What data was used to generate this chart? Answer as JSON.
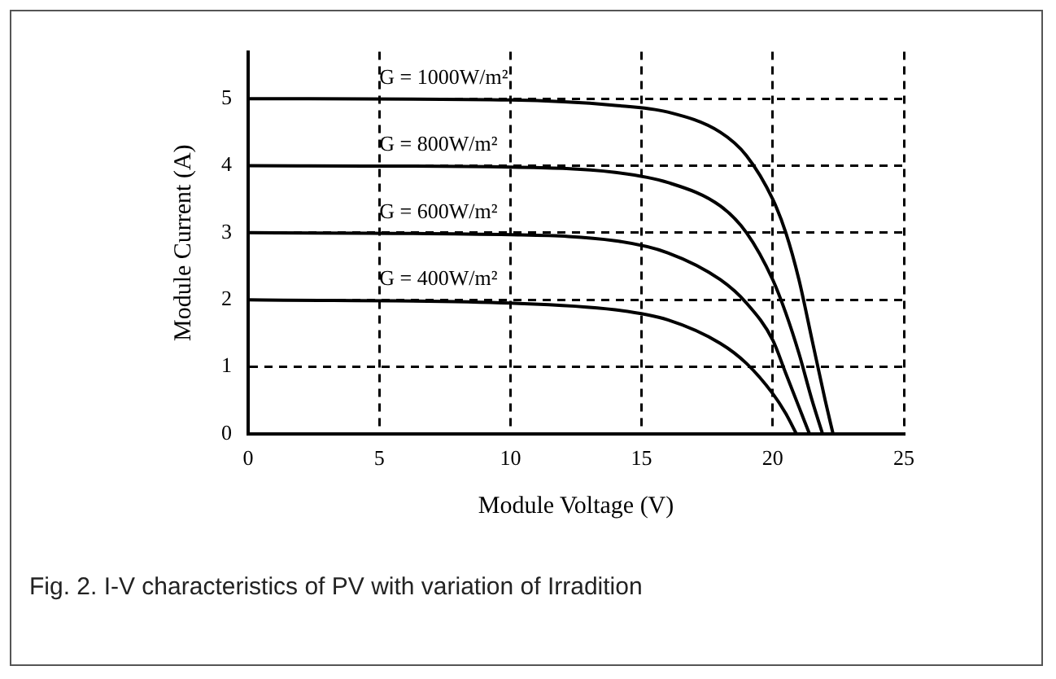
{
  "chart_data": {
    "type": "line",
    "xlabel": "Module Voltage (V)",
    "ylabel": "Module Current (A)",
    "xlim": [
      0,
      25
    ],
    "xticks": [
      0,
      5,
      10,
      15,
      20,
      25
    ],
    "ylim": [
      0,
      5.7
    ],
    "yticks": [
      0,
      1,
      2,
      3,
      4,
      5
    ],
    "grid": true,
    "legend": false,
    "marker": "none",
    "line_style": "solid",
    "series": [
      {
        "name": "G = 1000W/m²",
        "color": "#000000",
        "x": [
          0,
          10,
          14,
          16,
          18,
          19,
          20,
          20.5,
          21,
          21.5,
          22,
          22.3
        ],
        "values": [
          5,
          4.98,
          4.9,
          4.8,
          4.5,
          4.15,
          3.5,
          3.0,
          2.3,
          1.4,
          0.5,
          0
        ]
      },
      {
        "name": "G = 800W/m²",
        "color": "#000000",
        "x": [
          0,
          10,
          14,
          16,
          18,
          19,
          20,
          20.5,
          21,
          21.5,
          21.9
        ],
        "values": [
          4,
          3.98,
          3.9,
          3.75,
          3.4,
          3.0,
          2.3,
          1.8,
          1.2,
          0.5,
          0
        ]
      },
      {
        "name": "G = 600W/m²",
        "color": "#000000",
        "x": [
          0,
          10,
          14,
          16,
          18,
          19,
          20,
          20.5,
          21,
          21.4
        ],
        "values": [
          3,
          2.97,
          2.88,
          2.7,
          2.3,
          1.95,
          1.4,
          0.9,
          0.4,
          0
        ]
      },
      {
        "name": "G = 400W/m²",
        "color": "#000000",
        "x": [
          0,
          10,
          14,
          16,
          18,
          19,
          20,
          20.5,
          20.9
        ],
        "values": [
          2,
          1.95,
          1.85,
          1.7,
          1.35,
          1.05,
          0.6,
          0.3,
          0
        ]
      }
    ],
    "annotations": [
      "Fig. 2. I-V characteristics of PV  with variation of Irradition"
    ]
  }
}
